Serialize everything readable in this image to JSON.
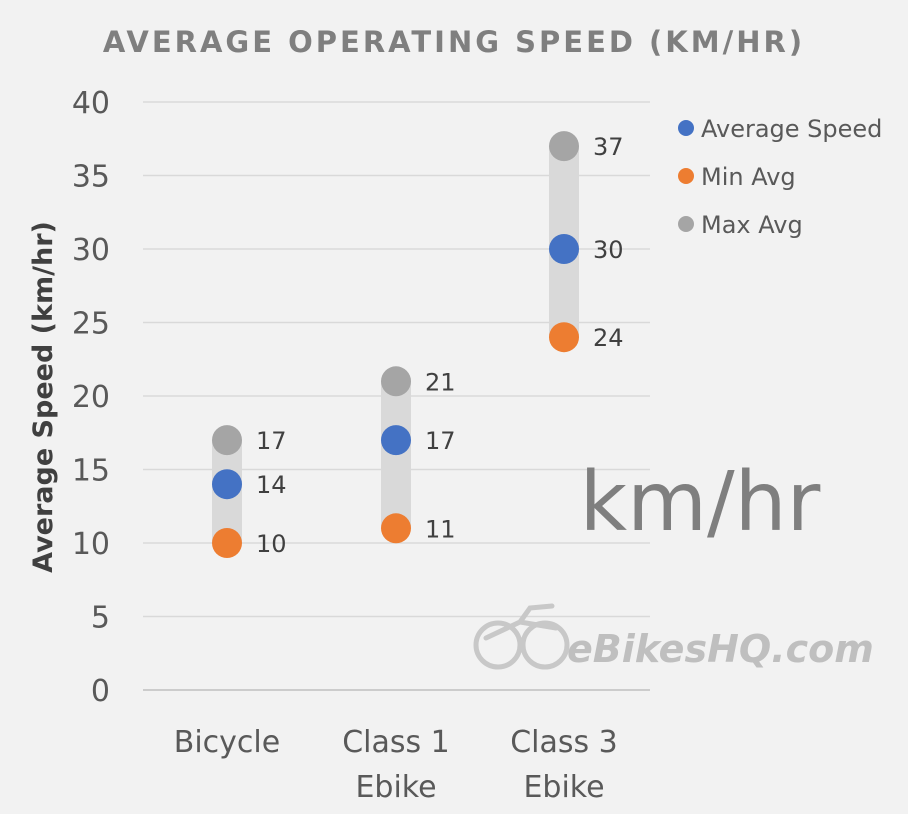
{
  "chart_data": {
    "type": "scatter",
    "title": "AVERAGE OPERATING SPEED (KM/HR)",
    "xlabel": "",
    "ylabel": "Average Speed (km/hr)",
    "ylim": [
      0,
      40
    ],
    "yticks": [
      0,
      5,
      10,
      15,
      20,
      25,
      30,
      35,
      40
    ],
    "categories": [
      [
        "Bicycle"
      ],
      [
        "Class 1",
        "Ebike"
      ],
      [
        "Class 3",
        "Ebike"
      ]
    ],
    "series": [
      {
        "name": "Average Speed",
        "color": "#4472c4",
        "values": [
          14,
          17,
          30
        ]
      },
      {
        "name": "Min Avg",
        "color": "#ed7d31",
        "values": [
          10,
          11,
          24
        ]
      },
      {
        "name": "Max Avg",
        "color": "#a5a5a5",
        "values": [
          17,
          21,
          37
        ]
      }
    ],
    "range_bar_color": "#d9d9d9",
    "grid": true,
    "legend_position": "top-right"
  },
  "overlay_text": "km/hr",
  "watermark": {
    "icon": "motorbike-icon",
    "text": "eBikesHQ.com"
  }
}
